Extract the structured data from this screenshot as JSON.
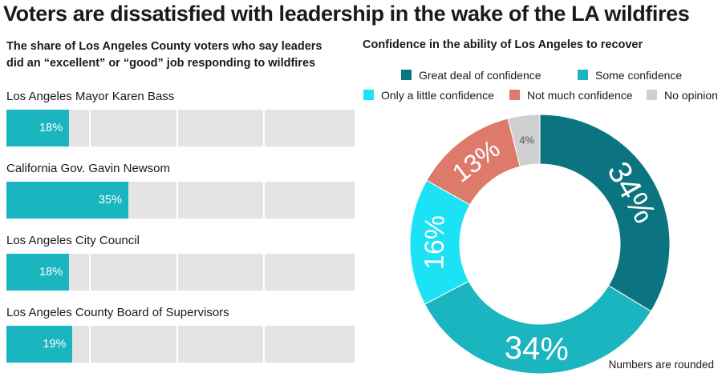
{
  "title": "Voters are dissatisfied with leadership in the wake of the LA wildfires",
  "left_panel": {
    "subtitle_line1": "The share of Los Angeles County voters who say leaders",
    "subtitle_line2": "did an “excellent” or “good” job responding to wildfires"
  },
  "right_panel": {
    "title": "Confidence in the ability of Los Angeles to recover",
    "footnote": "Numbers are rounded"
  },
  "colors": {
    "bar_fill": "#1ab5be",
    "bar_track": "#e4e4e4",
    "great_deal": "#0b7480",
    "some": "#1ab5be",
    "only_little": "#1ce2f5",
    "not_much": "#dd7a6c",
    "no_opinion": "#cfcfcf"
  },
  "chart_data": [
    {
      "type": "bar",
      "orientation": "horizontal",
      "categories": [
        "Los Angeles Mayor Karen Bass",
        "California Gov. Gavin Newsom",
        "Los Angeles City Council",
        "Los Angeles County Board of Supervisors"
      ],
      "values": [
        18,
        35,
        18,
        19
      ],
      "value_labels": [
        "18%",
        "35%",
        "18%",
        "19%"
      ],
      "xlim": [
        0,
        100
      ],
      "grid": true
    },
    {
      "type": "pie",
      "donut": true,
      "labels": [
        "Great deal of confidence",
        "Some confidence",
        "Only a little confidence",
        "Not much confidence",
        "No opinion"
      ],
      "values": [
        34,
        34,
        16,
        13,
        4
      ],
      "value_labels": [
        "34%",
        "34%",
        "16%",
        "13%",
        "4%"
      ],
      "legend": "top"
    }
  ]
}
